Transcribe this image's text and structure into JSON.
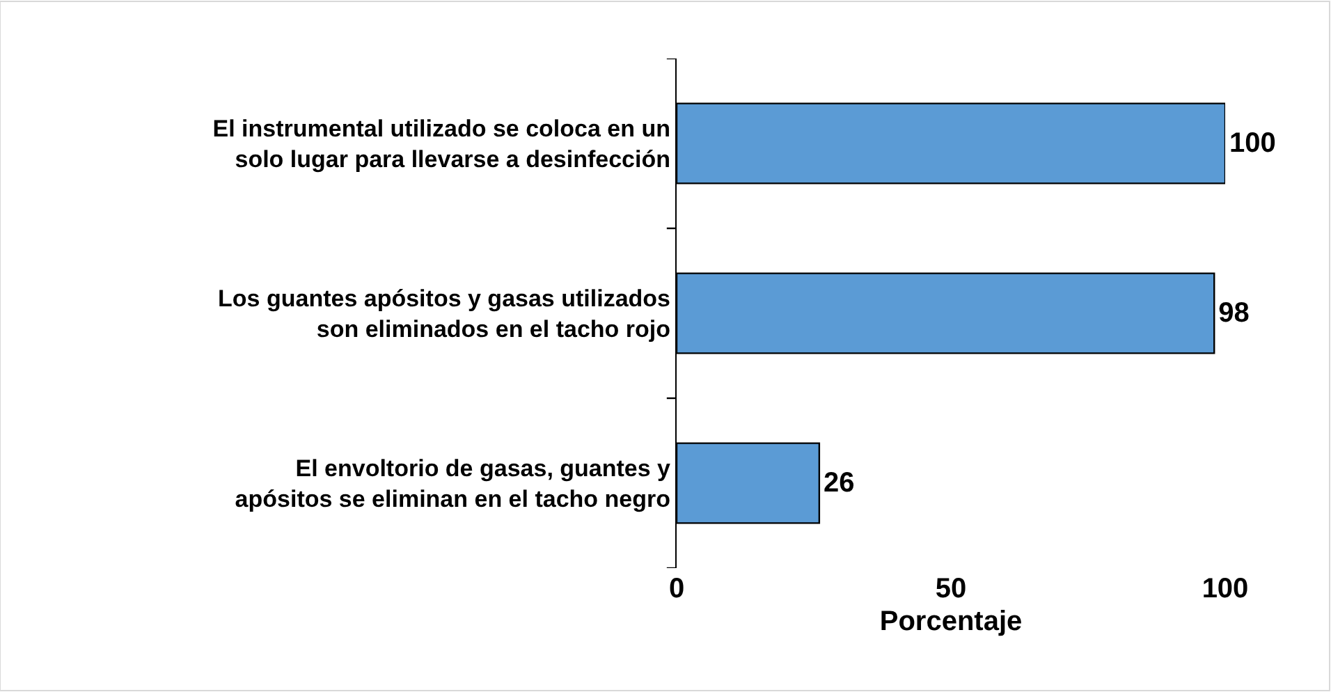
{
  "chart_data": {
    "type": "bar",
    "orientation": "horizontal",
    "xlabel": "Porcentaje",
    "categories": [
      "El instrumental utilizado se coloca en un solo lugar para llevarse a desinfección",
      "Los guantes apósitos y gasas utilizados son eliminados en el tacho rojo",
      "El envoltorio de gasas, guantes y apósitos se eliminan en el tacho negro"
    ],
    "values": [
      100,
      98,
      26
    ],
    "color": "#5b9bd5",
    "xlim": [
      0,
      100
    ],
    "xticks": [
      0,
      50,
      100
    ],
    "data_labels": true
  }
}
